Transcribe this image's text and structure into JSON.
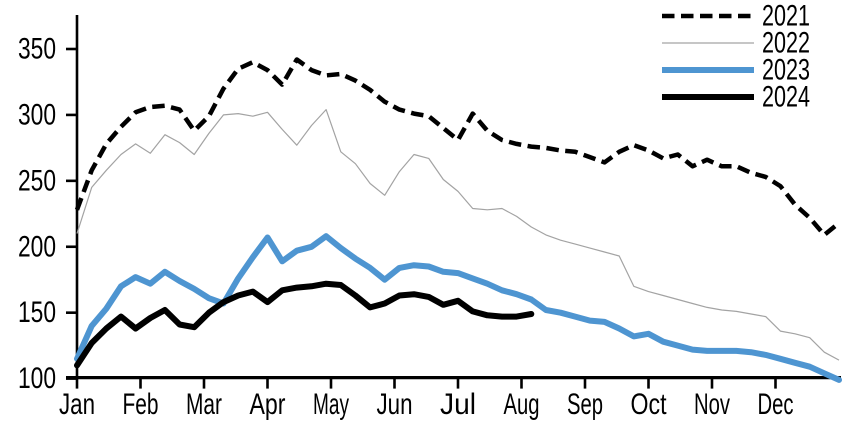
{
  "chart_data": {
    "type": "line",
    "title": "",
    "x_axis": {
      "tick_labels": [
        "Jan",
        "Feb",
        "Mar",
        "Apr",
        "May",
        "Jun",
        "Jul",
        "Aug",
        "Sep",
        "Oct",
        "Nov",
        "Dec"
      ],
      "unit": "weekly points across one calendar year"
    },
    "y_axis": {
      "min": 100,
      "max": 350,
      "tick_step": 50,
      "tick_labels": [
        "350",
        "300",
        "250",
        "200",
        "150",
        "100"
      ]
    },
    "grid": "off",
    "legend_position": "top-right",
    "series": [
      {
        "name": "2021",
        "color": "#000000",
        "line_style": "dashed",
        "stroke_width": 4.5,
        "values": [
          228,
          258,
          278,
          291,
          302,
          306,
          307,
          304,
          288,
          299,
          320,
          335,
          340,
          334,
          323,
          342,
          334,
          330,
          331,
          326,
          319,
          310,
          304,
          301,
          299,
          290,
          281,
          301,
          288,
          281,
          278,
          276,
          275,
          273,
          272,
          268,
          264,
          272,
          277,
          273,
          267,
          270,
          261,
          266,
          261,
          261,
          256,
          253,
          246,
          232,
          222,
          209,
          218
        ]
      },
      {
        "name": "2022",
        "color": "#a3a3a3",
        "line_style": "solid-thin",
        "stroke_width": 1.2,
        "values": [
          210,
          245,
          258,
          270,
          278,
          271,
          285,
          279,
          270,
          286,
          300,
          301,
          299,
          302,
          289,
          277,
          292,
          304,
          272,
          263,
          248,
          239,
          257,
          270,
          267,
          251,
          242,
          229,
          228,
          229,
          223,
          215,
          209,
          205,
          202,
          199,
          196,
          193,
          170,
          166,
          163,
          160,
          157,
          154,
          152,
          151,
          149,
          147,
          136,
          134,
          131,
          120,
          114
        ]
      },
      {
        "name": "2023",
        "color": "#4e95d1",
        "line_style": "solid",
        "stroke_width": 6,
        "values": [
          115,
          140,
          153,
          170,
          177,
          172,
          181,
          174,
          168,
          161,
          157,
          176,
          192,
          207,
          189,
          197,
          200,
          208,
          199,
          191,
          184,
          175,
          184,
          186,
          185,
          181,
          180,
          176,
          172,
          167,
          164,
          160,
          152,
          150,
          147,
          144,
          143,
          138,
          132,
          134,
          128,
          125,
          122,
          121,
          121,
          121,
          120,
          118,
          115,
          112,
          109,
          104,
          99
        ]
      },
      {
        "name": "2024",
        "color": "#000000",
        "line_style": "solid",
        "stroke_width": 6,
        "values": [
          110,
          127,
          138,
          147,
          138,
          146,
          152,
          141,
          139,
          150,
          158,
          163,
          166,
          158,
          167,
          169,
          170,
          172,
          171,
          163,
          154,
          157,
          163,
          164,
          162,
          156,
          159,
          151,
          148,
          147,
          147,
          149
        ]
      }
    ]
  }
}
